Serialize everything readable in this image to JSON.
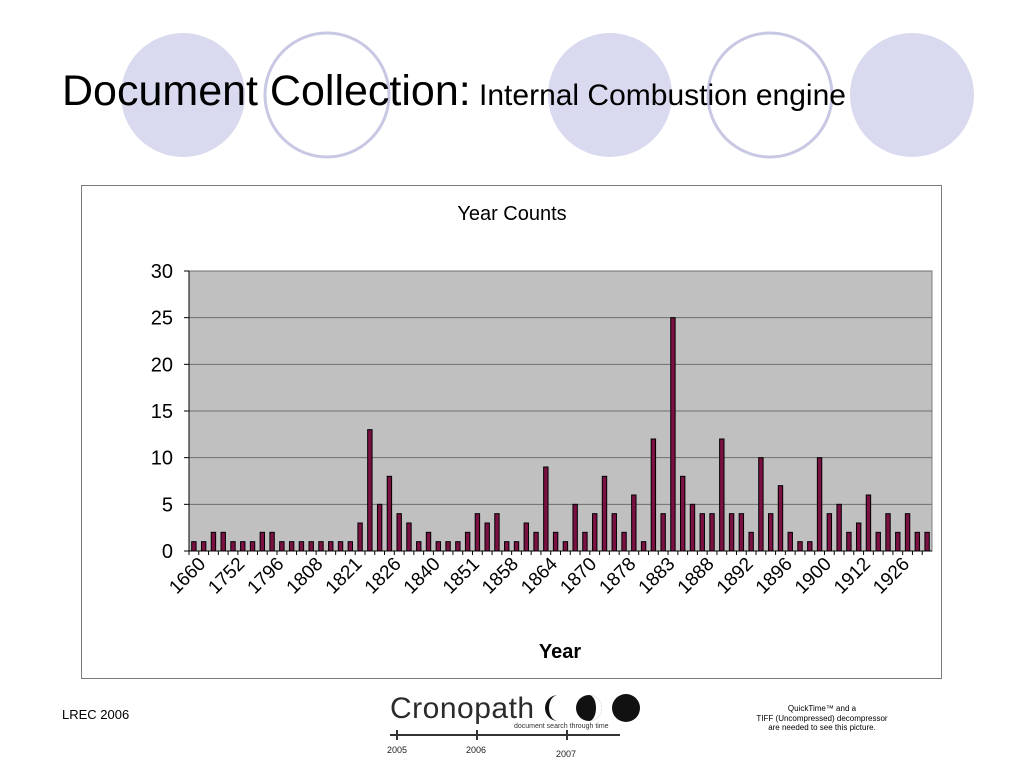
{
  "slide": {
    "title_main": "Document Collection",
    "title_colon": ":",
    "title_sub": " Internal Combustion engine",
    "footer_left": "LREC 2006",
    "qt_line1": "QuickTime™ and a",
    "qt_line2": "TIFF (Uncompressed) decompressor",
    "qt_line3": "are needed to see this picture."
  },
  "logo": {
    "word": "Cronopath",
    "tagline": "document search through time",
    "years": [
      "2005",
      "2006",
      "2007"
    ]
  },
  "colors": {
    "circle_fill": "#d9d9ef",
    "circle_stroke": "#c8c8e4",
    "plot_bg": "#c0c0c0",
    "bar_fill": "#7b1142",
    "bar_stroke": "#000000"
  },
  "chart_data": {
    "type": "bar",
    "title": "Year Counts",
    "xlabel": "Year",
    "ylabel": "",
    "ylim": [
      0,
      30
    ],
    "yticks": [
      0,
      5,
      10,
      15,
      20,
      25,
      30
    ],
    "grid": true,
    "legend": "none",
    "x_tick_labels": [
      "1660",
      "1752",
      "1796",
      "1808",
      "1821",
      "1826",
      "1840",
      "1851",
      "1858",
      "1864",
      "1870",
      "1878",
      "1883",
      "1888",
      "1892",
      "1896",
      "1900",
      "1912",
      "1926"
    ],
    "values": [
      1,
      1,
      2,
      2,
      1,
      1,
      1,
      2,
      2,
      1,
      1,
      1,
      1,
      1,
      1,
      1,
      1,
      3,
      13,
      5,
      8,
      4,
      3,
      1,
      2,
      1,
      1,
      1,
      2,
      4,
      3,
      4,
      1,
      1,
      3,
      2,
      9,
      2,
      1,
      5,
      2,
      4,
      8,
      4,
      2,
      6,
      1,
      12,
      4,
      25,
      8,
      5,
      4,
      4,
      12,
      4,
      4,
      2,
      10,
      4,
      7,
      2,
      1,
      1,
      10,
      4,
      5,
      2,
      3,
      6,
      2,
      4,
      2,
      4,
      2,
      2
    ]
  }
}
